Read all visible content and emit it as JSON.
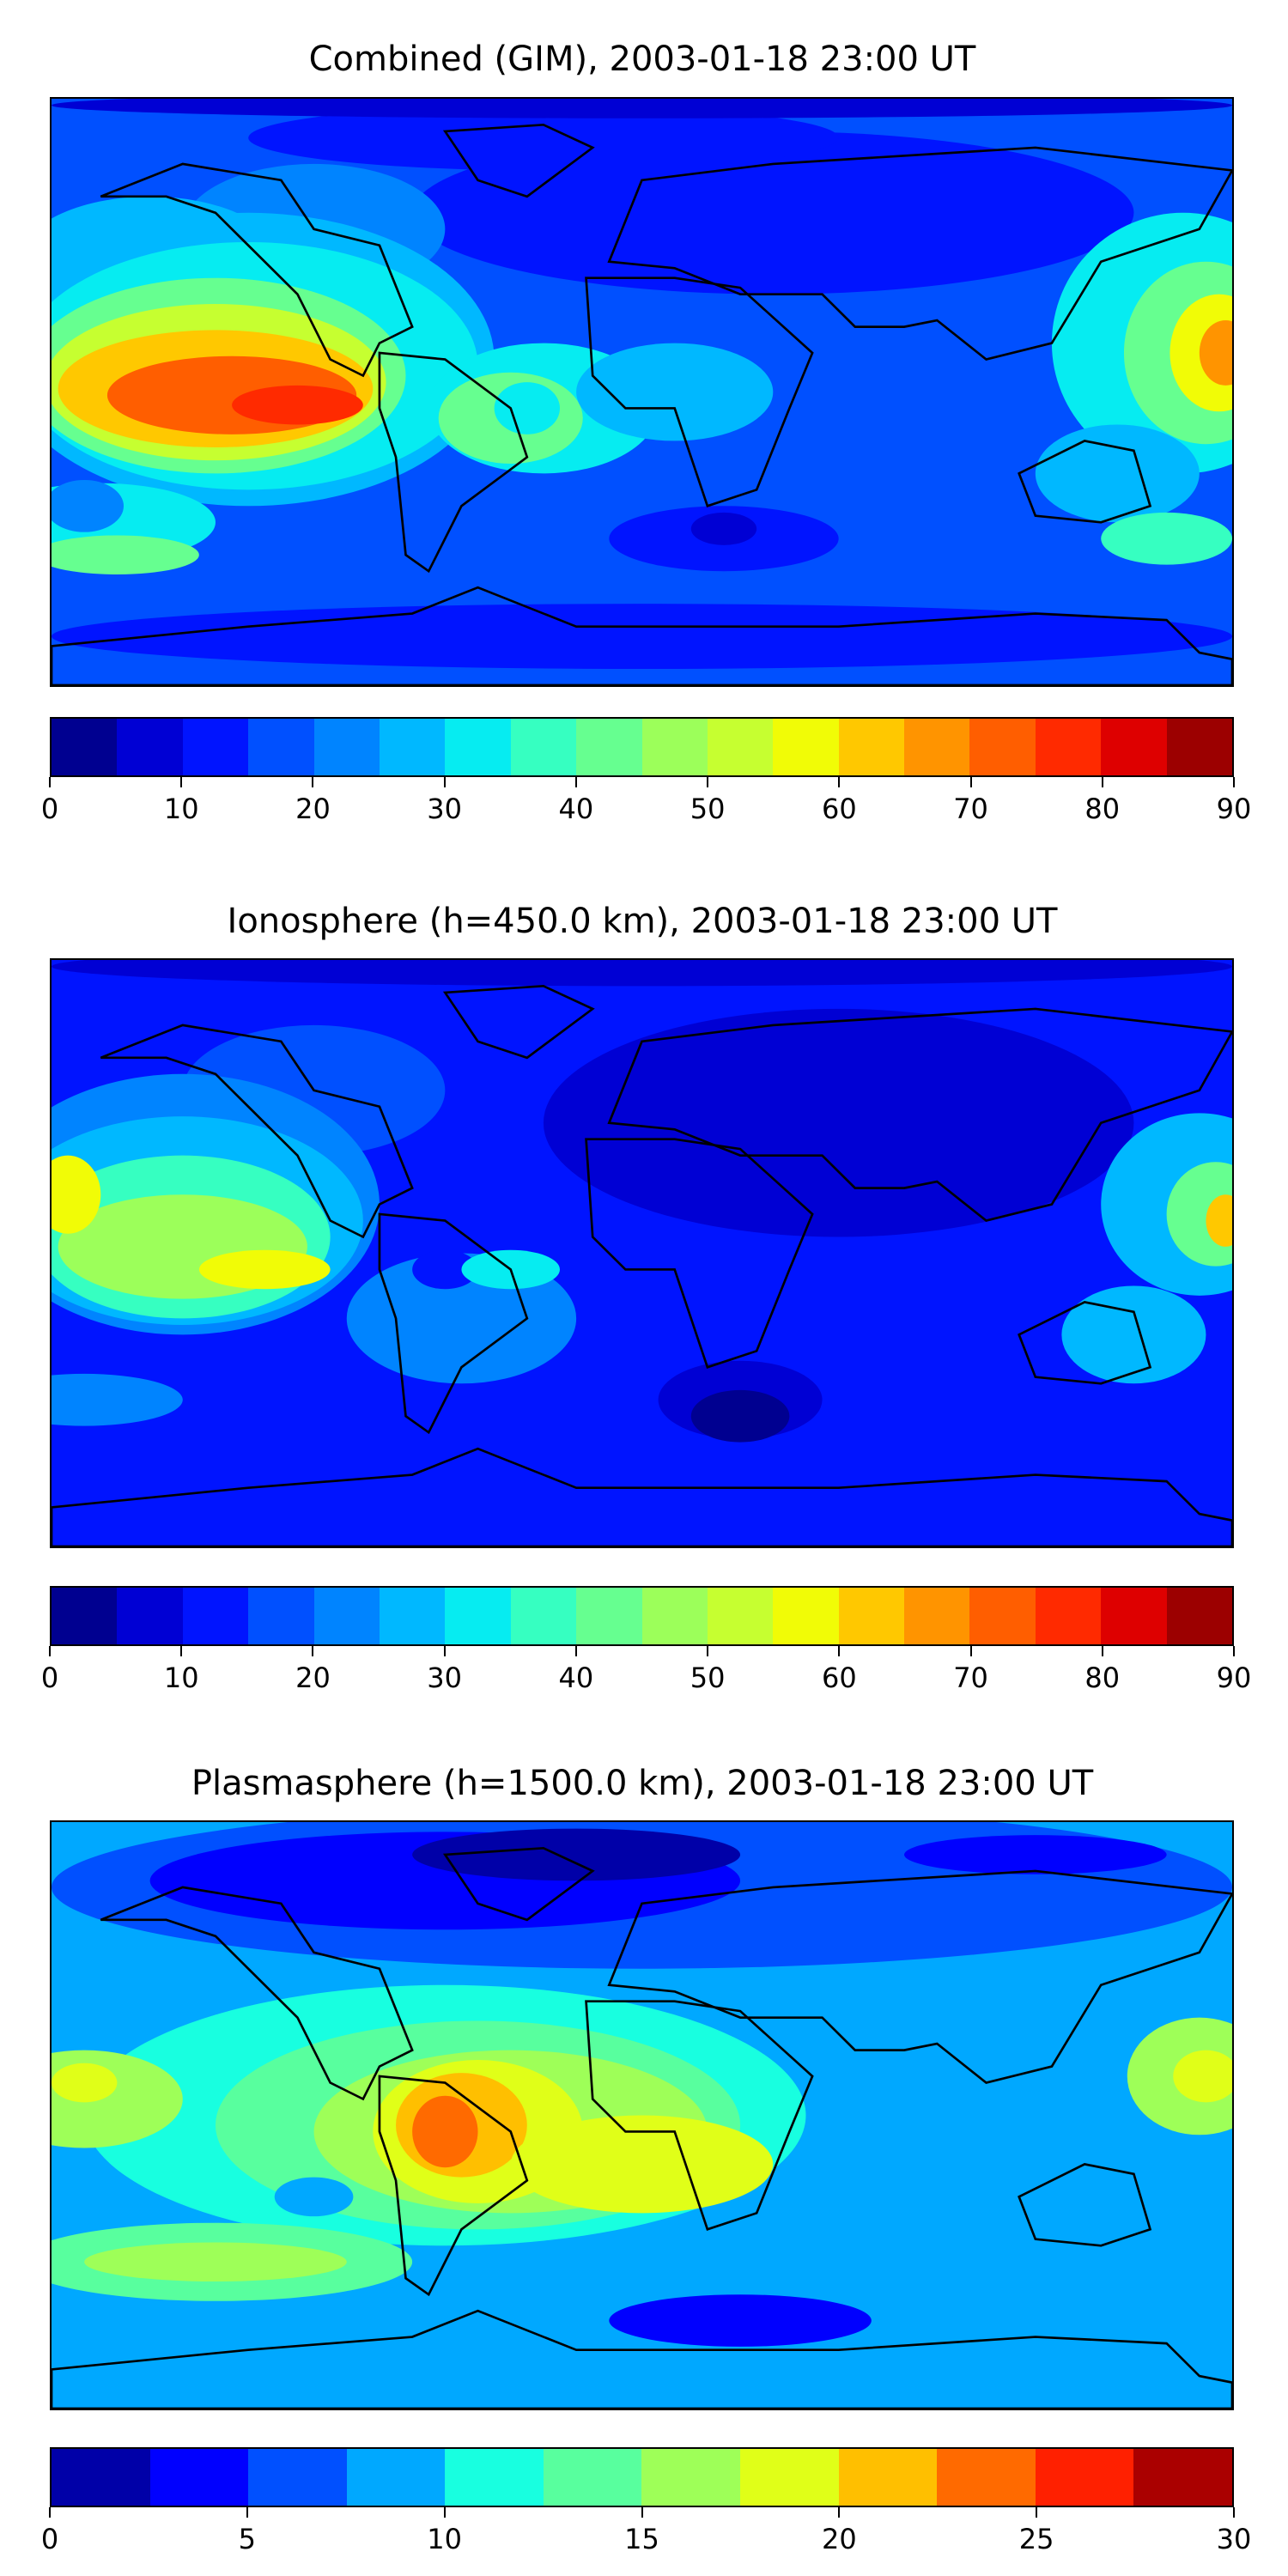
{
  "chart_data": [
    {
      "type": "heatmap",
      "title": "Combined (GIM), 2003-01-18 23:00 UT",
      "colorbar": {
        "min": 0,
        "max": 90,
        "step": 5,
        "tick_labels": [
          "0",
          "10",
          "20",
          "30",
          "40",
          "50",
          "60",
          "70",
          "80",
          "90"
        ],
        "colors": [
          "#000090",
          "#0000d4",
          "#0014ff",
          "#0050ff",
          "#0084ff",
          "#00b8ff",
          "#06ecf1",
          "#36ffc1",
          "#66ff90",
          "#9cff5a",
          "#c6ff30",
          "#f1fc06",
          "#ffc800",
          "#ff9400",
          "#ff5e00",
          "#ff2a00",
          "#de0000",
          "#9c0000"
        ]
      },
      "peak_region": "Eastern Pacific near equator, ~75-80"
    },
    {
      "type": "heatmap",
      "title": "Ionosphere  (h=450.0 km), 2003-01-18 23:00 UT",
      "colorbar": {
        "min": 0,
        "max": 90,
        "step": 5,
        "tick_labels": [
          "0",
          "10",
          "20",
          "30",
          "40",
          "50",
          "60",
          "70",
          "80",
          "90"
        ],
        "colors": [
          "#000090",
          "#0000d4",
          "#0014ff",
          "#0050ff",
          "#0084ff",
          "#00b8ff",
          "#06ecf1",
          "#36ffc1",
          "#66ff90",
          "#9cff5a",
          "#c6ff30",
          "#f1fc06",
          "#ffc800",
          "#ff9400",
          "#ff5e00",
          "#ff2a00",
          "#de0000",
          "#9c0000"
        ]
      },
      "peak_region": "Central Pacific, ~55-65"
    },
    {
      "type": "heatmap",
      "title": "Plasmasphere (h=1500.0 km), 2003-01-18 23:00 UT",
      "colorbar": {
        "min": 0,
        "max": 30,
        "step": 2.5,
        "tick_labels": [
          "0",
          "5",
          "10",
          "15",
          "20",
          "25",
          "30"
        ],
        "colors": [
          "#0000a8",
          "#0000ff",
          "#0050ff",
          "#00a8ff",
          "#18ffe0",
          "#58ff9e",
          "#9eff58",
          "#e0ff18",
          "#ffbf00",
          "#ff6a00",
          "#ff2000",
          "#aa0000"
        ]
      },
      "peak_region": "Northern South America, ~22.5-25"
    }
  ]
}
